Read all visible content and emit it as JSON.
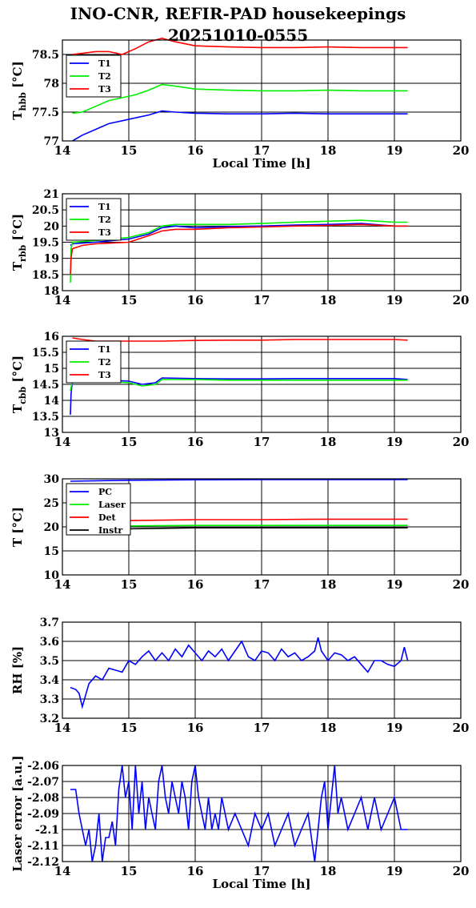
{
  "figure": {
    "title_line1": "INO-CNR, REFIR-PAD housekeepings",
    "title_line2": "20251010-0555"
  },
  "chart_data": [
    {
      "type": "line",
      "ylabel_main": "T",
      "ylabel_sub": "hbb",
      "ylabel_unit": " [°C]",
      "xlabel": "Local Time [h]",
      "xlim": [
        14,
        20
      ],
      "ylim": [
        77,
        78.75
      ],
      "yticks": [
        77,
        77.5,
        78,
        78.5
      ],
      "ytick_labels": [
        "77",
        "77.5",
        "78",
        "78.5"
      ],
      "xticks": [
        14,
        15,
        16,
        17,
        18,
        19,
        20
      ],
      "xtick_labels": [
        "14",
        "15",
        "16",
        "17",
        "18",
        "19",
        "20"
      ],
      "legend_position": "top-left",
      "grid": true,
      "series": [
        {
          "name": "T1",
          "color": "#0000ff",
          "x": [
            14.15,
            14.3,
            14.5,
            14.7,
            14.9,
            15.1,
            15.3,
            15.5,
            15.7,
            16.0,
            16.5,
            17.0,
            17.5,
            18.0,
            18.5,
            19.0,
            19.2
          ],
          "y": [
            77.0,
            77.1,
            77.2,
            77.3,
            77.35,
            77.4,
            77.45,
            77.52,
            77.5,
            77.48,
            77.47,
            77.47,
            77.48,
            77.47,
            77.47,
            77.47,
            77.47
          ]
        },
        {
          "name": "T2",
          "color": "#00ee00",
          "x": [
            14.15,
            14.3,
            14.5,
            14.7,
            14.9,
            15.1,
            15.3,
            15.5,
            15.7,
            16.0,
            16.5,
            17.0,
            17.5,
            18.0,
            18.5,
            19.0,
            19.2
          ],
          "y": [
            77.48,
            77.5,
            77.6,
            77.7,
            77.75,
            77.8,
            77.88,
            77.98,
            77.95,
            77.9,
            77.88,
            77.87,
            77.87,
            77.88,
            77.87,
            77.87,
            77.87
          ]
        },
        {
          "name": "T3",
          "color": "#ff0000",
          "x": [
            14.15,
            14.3,
            14.5,
            14.7,
            14.9,
            15.1,
            15.3,
            15.5,
            15.7,
            16.0,
            16.5,
            17.0,
            17.5,
            18.0,
            18.5,
            19.0,
            19.2
          ],
          "y": [
            78.5,
            78.52,
            78.55,
            78.55,
            78.5,
            78.6,
            78.72,
            78.78,
            78.72,
            78.65,
            78.63,
            78.62,
            78.62,
            78.63,
            78.62,
            78.62,
            78.62
          ]
        }
      ]
    },
    {
      "type": "line",
      "ylabel_main": "T",
      "ylabel_sub": "rbb",
      "ylabel_unit": " [°C]",
      "xlabel": "",
      "xlim": [
        14,
        20
      ],
      "ylim": [
        18,
        21
      ],
      "yticks": [
        18,
        18.5,
        19,
        19.5,
        20,
        20.5,
        21
      ],
      "ytick_labels": [
        "18",
        "18.5",
        "19",
        "19.5",
        "20",
        "20.5",
        "21"
      ],
      "xticks": [
        14,
        15,
        16,
        17,
        18,
        19,
        20
      ],
      "xtick_labels": [
        "14",
        "15",
        "16",
        "17",
        "18",
        "19",
        "20"
      ],
      "legend_position": "top-left",
      "grid": true,
      "series": [
        {
          "name": "T1",
          "color": "#0000ff",
          "x": [
            14.12,
            14.15,
            14.5,
            15.0,
            15.3,
            15.5,
            15.7,
            16.0,
            16.5,
            17.0,
            17.5,
            18.0,
            18.5,
            19.0,
            19.2
          ],
          "y": [
            19.4,
            19.45,
            19.5,
            19.6,
            19.75,
            19.95,
            20.0,
            19.95,
            19.98,
            20.0,
            20.03,
            20.05,
            20.08,
            20.0,
            20.0
          ]
        },
        {
          "name": "T2",
          "color": "#00ee00",
          "x": [
            14.12,
            14.13,
            14.15,
            14.5,
            15.0,
            15.3,
            15.5,
            15.7,
            16.0,
            16.5,
            17.0,
            17.5,
            18.0,
            18.5,
            19.0,
            19.2
          ],
          "y": [
            18.25,
            19.3,
            19.5,
            19.55,
            19.65,
            19.8,
            20.0,
            20.05,
            20.05,
            20.05,
            20.08,
            20.12,
            20.15,
            20.18,
            20.12,
            20.12
          ]
        },
        {
          "name": "T3",
          "color": "#ff0000",
          "x": [
            14.12,
            14.13,
            14.15,
            14.3,
            14.5,
            15.0,
            15.3,
            15.5,
            15.7,
            16.0,
            16.5,
            17.0,
            17.5,
            18.0,
            18.5,
            19.0,
            19.2
          ],
          "y": [
            18.5,
            19.0,
            19.3,
            19.4,
            19.45,
            19.5,
            19.7,
            19.85,
            19.9,
            19.9,
            19.95,
            19.97,
            20.0,
            20.02,
            20.05,
            20.0,
            20.0
          ]
        }
      ]
    },
    {
      "type": "line",
      "ylabel_main": "T",
      "ylabel_sub": "cbb",
      "ylabel_unit": " [°C]",
      "xlabel": "",
      "xlim": [
        14,
        20
      ],
      "ylim": [
        13,
        16
      ],
      "yticks": [
        13,
        13.5,
        14,
        14.5,
        15,
        15.5,
        16
      ],
      "ytick_labels": [
        "13",
        "13.5",
        "14",
        "14.5",
        "15",
        "15.5",
        "16"
      ],
      "xticks": [
        14,
        15,
        16,
        17,
        18,
        19,
        20
      ],
      "xtick_labels": [
        "14",
        "15",
        "16",
        "17",
        "18",
        "19",
        "20"
      ],
      "legend_position": "top-left",
      "grid": true,
      "series": [
        {
          "name": "T1",
          "color": "#0000ff",
          "x": [
            14.12,
            14.13,
            14.15,
            14.5,
            15.0,
            15.2,
            15.4,
            15.5,
            16.0,
            16.5,
            17.0,
            17.5,
            18.0,
            18.5,
            19.0,
            19.2
          ],
          "y": [
            13.55,
            14.2,
            14.6,
            14.65,
            14.6,
            14.5,
            14.55,
            14.7,
            14.68,
            14.67,
            14.67,
            14.68,
            14.68,
            14.68,
            14.68,
            14.65
          ]
        },
        {
          "name": "T2",
          "color": "#00ee00",
          "x": [
            14.12,
            14.15,
            14.5,
            15.0,
            15.2,
            15.4,
            15.5,
            16.0,
            16.5,
            17.0,
            17.5,
            18.0,
            18.5,
            19.0,
            19.2
          ],
          "y": [
            14.3,
            14.6,
            14.62,
            14.55,
            14.45,
            14.5,
            14.65,
            14.65,
            14.63,
            14.63,
            14.63,
            14.63,
            14.63,
            14.63,
            14.63
          ]
        },
        {
          "name": "T3",
          "color": "#ff0000",
          "x": [
            14.15,
            14.3,
            14.5,
            15.0,
            15.5,
            16.0,
            16.5,
            17.0,
            17.5,
            18.0,
            18.5,
            19.0,
            19.2
          ],
          "y": [
            15.95,
            15.9,
            15.85,
            15.85,
            15.85,
            15.87,
            15.88,
            15.88,
            15.9,
            15.9,
            15.9,
            15.9,
            15.88
          ]
        }
      ]
    },
    {
      "type": "line",
      "ylabel_main": "T [°C]",
      "ylabel_sub": "",
      "ylabel_unit": "",
      "xlabel": "",
      "xlim": [
        14,
        20
      ],
      "ylim": [
        10,
        30
      ],
      "yticks": [
        10,
        15,
        20,
        25,
        30
      ],
      "ytick_labels": [
        "10",
        "15",
        "20",
        "25",
        "30"
      ],
      "xticks": [
        14,
        15,
        16,
        17,
        18,
        19,
        20
      ],
      "xtick_labels": [
        "14",
        "15",
        "16",
        "17",
        "18",
        "19",
        "20"
      ],
      "legend_position": "top-left",
      "grid": true,
      "series": [
        {
          "name": "PC",
          "color": "#0000ff",
          "x": [
            14.12,
            15.0,
            16.0,
            17.0,
            18.0,
            19.0,
            19.2
          ],
          "y": [
            29.5,
            29.7,
            29.8,
            29.85,
            29.85,
            29.85,
            29.85
          ]
        },
        {
          "name": "Laser",
          "color": "#00ee00",
          "x": [
            14.12,
            15.0,
            16.0,
            17.0,
            18.0,
            19.0,
            19.2
          ],
          "y": [
            20.0,
            20.2,
            20.3,
            20.3,
            20.3,
            20.3,
            20.3
          ]
        },
        {
          "name": "Det",
          "color": "#ff0000",
          "x": [
            14.12,
            15.0,
            16.0,
            17.0,
            18.0,
            19.0,
            19.2
          ],
          "y": [
            21.0,
            21.3,
            21.5,
            21.5,
            21.6,
            21.6,
            21.6
          ]
        },
        {
          "name": "Instr",
          "color": "#000000",
          "x": [
            14.12,
            15.0,
            16.0,
            17.0,
            18.0,
            19.0,
            19.2
          ],
          "y": [
            19.5,
            19.6,
            19.8,
            19.8,
            19.8,
            19.8,
            19.8
          ]
        }
      ]
    },
    {
      "type": "line",
      "ylabel_main": "RH [%]",
      "ylabel_sub": "",
      "ylabel_unit": "",
      "xlabel": "",
      "xlim": [
        14,
        20
      ],
      "ylim": [
        3.2,
        3.7
      ],
      "yticks": [
        3.2,
        3.3,
        3.4,
        3.5,
        3.6,
        3.7
      ],
      "ytick_labels": [
        "3.2",
        "3.3",
        "3.4",
        "3.5",
        "3.6",
        "3.7"
      ],
      "xticks": [
        14,
        15,
        16,
        17,
        18,
        19,
        20
      ],
      "xtick_labels": [
        "14",
        "15",
        "16",
        "17",
        "18",
        "19",
        "20"
      ],
      "legend_position": "none",
      "grid": true,
      "series": [
        {
          "name": "",
          "color": "#0000ff",
          "x": [
            14.12,
            14.2,
            14.25,
            14.3,
            14.35,
            14.4,
            14.5,
            14.6,
            14.7,
            14.8,
            14.9,
            15.0,
            15.1,
            15.2,
            15.3,
            15.4,
            15.5,
            15.6,
            15.7,
            15.8,
            15.9,
            16.0,
            16.1,
            16.2,
            16.3,
            16.4,
            16.5,
            16.6,
            16.7,
            16.8,
            16.9,
            17.0,
            17.1,
            17.2,
            17.3,
            17.4,
            17.5,
            17.6,
            17.7,
            17.8,
            17.85,
            17.9,
            18.0,
            18.1,
            18.2,
            18.3,
            18.4,
            18.5,
            18.6,
            18.7,
            18.8,
            18.9,
            19.0,
            19.1,
            19.15,
            19.2
          ],
          "y": [
            3.36,
            3.35,
            3.33,
            3.26,
            3.32,
            3.38,
            3.42,
            3.4,
            3.46,
            3.45,
            3.44,
            3.5,
            3.48,
            3.52,
            3.55,
            3.5,
            3.54,
            3.5,
            3.56,
            3.52,
            3.58,
            3.54,
            3.5,
            3.55,
            3.52,
            3.56,
            3.5,
            3.55,
            3.6,
            3.52,
            3.5,
            3.55,
            3.54,
            3.5,
            3.56,
            3.52,
            3.54,
            3.5,
            3.52,
            3.55,
            3.62,
            3.55,
            3.5,
            3.54,
            3.53,
            3.5,
            3.52,
            3.48,
            3.44,
            3.5,
            3.5,
            3.48,
            3.47,
            3.5,
            3.57,
            3.5
          ]
        }
      ]
    },
    {
      "type": "line",
      "ylabel_main": "Laser error [a.u.]",
      "ylabel_sub": "",
      "ylabel_unit": "",
      "xlabel": "Local Time [h]",
      "xlim": [
        14,
        20
      ],
      "ylim": [
        -2.12,
        -2.06
      ],
      "yticks": [
        -2.12,
        -2.11,
        -2.1,
        -2.09,
        -2.08,
        -2.07,
        -2.06
      ],
      "ytick_labels": [
        "-2.12",
        "-2.11",
        "-2.1",
        "-2.09",
        "-2.08",
        "-2.07",
        "-2.06"
      ],
      "xticks": [
        14,
        15,
        16,
        17,
        18,
        19,
        20
      ],
      "xtick_labels": [
        "14",
        "15",
        "16",
        "17",
        "18",
        "19",
        "20"
      ],
      "legend_position": "none",
      "grid": true,
      "series": [
        {
          "name": "",
          "color": "#0000ff",
          "x": [
            14.12,
            14.2,
            14.25,
            14.3,
            14.35,
            14.4,
            14.45,
            14.5,
            14.55,
            14.6,
            14.65,
            14.7,
            14.75,
            14.8,
            14.85,
            14.9,
            14.95,
            15.0,
            15.05,
            15.1,
            15.15,
            15.2,
            15.25,
            15.3,
            15.35,
            15.4,
            15.45,
            15.5,
            15.55,
            15.6,
            15.65,
            15.7,
            15.75,
            15.8,
            15.85,
            15.9,
            15.95,
            16.0,
            16.05,
            16.1,
            16.15,
            16.2,
            16.25,
            16.3,
            16.35,
            16.4,
            16.5,
            16.6,
            16.7,
            16.8,
            16.9,
            17.0,
            17.1,
            17.2,
            17.3,
            17.4,
            17.5,
            17.6,
            17.7,
            17.8,
            17.85,
            17.9,
            17.95,
            18.0,
            18.1,
            18.15,
            18.2,
            18.3,
            18.4,
            18.5,
            18.6,
            18.7,
            18.8,
            18.9,
            19.0,
            19.1,
            19.2
          ],
          "y": [
            -2.075,
            -2.075,
            -2.09,
            -2.1,
            -2.11,
            -2.1,
            -2.12,
            -2.11,
            -2.09,
            -2.12,
            -2.105,
            -2.105,
            -2.095,
            -2.11,
            -2.075,
            -2.06,
            -2.08,
            -2.07,
            -2.1,
            -2.06,
            -2.09,
            -2.07,
            -2.1,
            -2.08,
            -2.09,
            -2.1,
            -2.07,
            -2.06,
            -2.08,
            -2.09,
            -2.07,
            -2.08,
            -2.09,
            -2.07,
            -2.08,
            -2.1,
            -2.07,
            -2.06,
            -2.08,
            -2.09,
            -2.1,
            -2.08,
            -2.1,
            -2.09,
            -2.1,
            -2.08,
            -2.1,
            -2.09,
            -2.1,
            -2.11,
            -2.09,
            -2.1,
            -2.09,
            -2.11,
            -2.1,
            -2.09,
            -2.11,
            -2.1,
            -2.09,
            -2.12,
            -2.1,
            -2.08,
            -2.07,
            -2.1,
            -2.06,
            -2.09,
            -2.08,
            -2.1,
            -2.09,
            -2.08,
            -2.1,
            -2.08,
            -2.1,
            -2.09,
            -2.08,
            -2.1,
            -2.1
          ]
        }
      ]
    }
  ]
}
